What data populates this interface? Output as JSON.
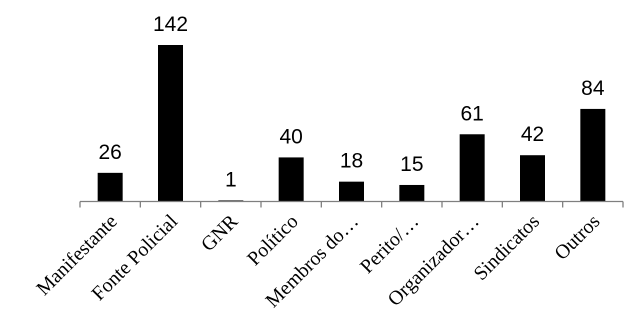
{
  "chart_data": {
    "type": "bar",
    "categories": [
      "Manifestante",
      "Fonte Policial",
      "GNR",
      "Político",
      "Membros do…",
      "Perito/…",
      "Organizador…",
      "Sindicatos",
      "Outros"
    ],
    "values": [
      26,
      142,
      1,
      40,
      18,
      15,
      61,
      42,
      84
    ],
    "data_labels": [
      "26",
      "142",
      "1",
      "40",
      "18",
      "15",
      "61",
      "42",
      "84"
    ],
    "ylim": [
      0,
      142
    ],
    "grid": false,
    "legend": "none",
    "colors": {
      "bar": "#000000",
      "axis": "#7f7f7f",
      "text": "#000000"
    }
  }
}
